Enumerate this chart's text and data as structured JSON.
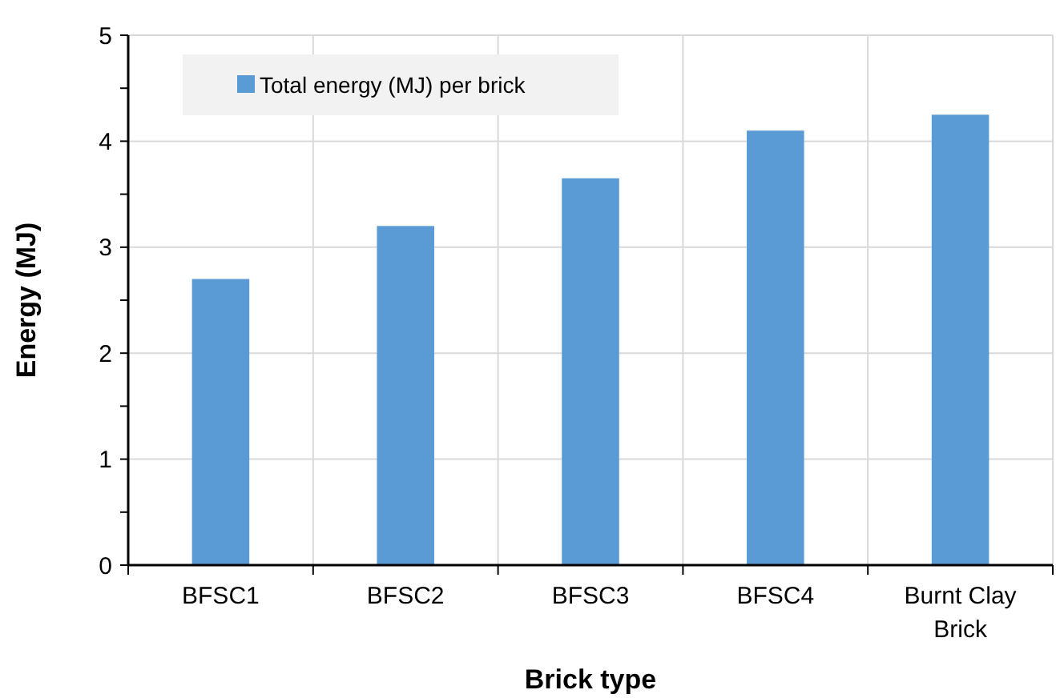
{
  "chart_data": {
    "type": "bar",
    "xlabel": "Brick type",
    "ylabel": "Energy (MJ)",
    "categories": [
      "BFSC1",
      "BFSC2",
      "BFSC3",
      "BFSC4",
      "Burnt Clay Brick"
    ],
    "series": [
      {
        "name": "Total energy (MJ) per brick",
        "color": "#5b9bd5",
        "values": [
          2.7,
          3.2,
          3.65,
          4.1,
          4.25
        ]
      }
    ],
    "ylim": [
      0,
      5
    ],
    "yticks": [
      0,
      {
        "value": 0.5,
        "label": null
      },
      1,
      {
        "value": 1.5,
        "label": null
      },
      2,
      {
        "value": 2.5,
        "label": null
      },
      3,
      {
        "value": 3.5,
        "label": null
      },
      4,
      {
        "value": 4.5,
        "label": null
      },
      5
    ],
    "grid": true,
    "legend": "top left"
  }
}
